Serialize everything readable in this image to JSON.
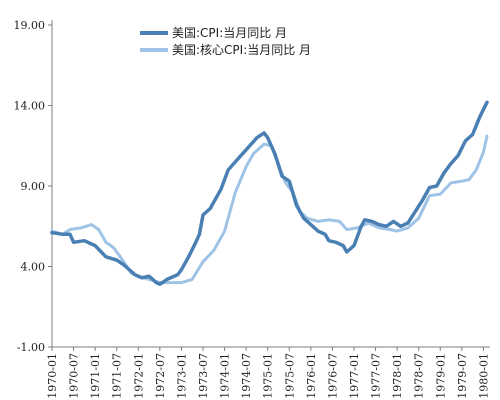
{
  "chart_data": {
    "type": "line",
    "title": "",
    "xlabel": "",
    "ylabel": "",
    "ylim": [
      -1.0,
      19.0
    ],
    "yticks": [
      "19.00",
      "14.00",
      "9.00",
      "4.00",
      "-1.00"
    ],
    "ytick_values": [
      19,
      14,
      9,
      4,
      -1
    ],
    "xticks": [
      "1970-01",
      "1970-07",
      "1971-01",
      "1971-07",
      "1972-01",
      "1972-07",
      "1973-01",
      "1973-07",
      "1974-01",
      "1974-07",
      "1975-01",
      "1975-07",
      "1976-01",
      "1976-07",
      "1977-01",
      "1977-07",
      "1978-01",
      "1978-07",
      "1979-01",
      "1979-07",
      "1980-01"
    ],
    "grid": false,
    "legend_position": "top",
    "x_range": [
      "1970-01",
      "1980-02"
    ],
    "series": [
      {
        "name": "美国:CPI:当月同比  月",
        "color": "#4a7fb3",
        "points": [
          [
            "1970-01",
            6.1
          ],
          [
            "1970-04",
            6.0
          ],
          [
            "1970-06",
            6.0
          ],
          [
            "1970-07",
            5.5
          ],
          [
            "1970-10",
            5.6
          ],
          [
            "1971-01",
            5.3
          ],
          [
            "1971-04",
            4.6
          ],
          [
            "1971-07",
            4.4
          ],
          [
            "1971-09",
            4.1
          ],
          [
            "1971-12",
            3.5
          ],
          [
            "1972-02",
            3.3
          ],
          [
            "1972-04",
            3.4
          ],
          [
            "1972-06",
            3.0
          ],
          [
            "1972-07",
            2.9
          ],
          [
            "1972-09",
            3.2
          ],
          [
            "1972-12",
            3.5
          ],
          [
            "1973-01",
            3.8
          ],
          [
            "1973-03",
            4.6
          ],
          [
            "1973-05",
            5.5
          ],
          [
            "1973-06",
            6.0
          ],
          [
            "1973-07",
            7.2
          ],
          [
            "1973-09",
            7.6
          ],
          [
            "1973-12",
            8.8
          ],
          [
            "1974-02",
            10.0
          ],
          [
            "1974-04",
            10.5
          ],
          [
            "1974-06",
            11.0
          ],
          [
            "1974-08",
            11.5
          ],
          [
            "1974-10",
            12.0
          ],
          [
            "1974-12",
            12.3
          ],
          [
            "1975-01",
            12.0
          ],
          [
            "1975-03",
            11.0
          ],
          [
            "1975-05",
            9.6
          ],
          [
            "1975-07",
            9.3
          ],
          [
            "1975-09",
            7.8
          ],
          [
            "1975-11",
            7.0
          ],
          [
            "1976-01",
            6.6
          ],
          [
            "1976-03",
            6.2
          ],
          [
            "1976-05",
            6.0
          ],
          [
            "1976-06",
            5.6
          ],
          [
            "1976-08",
            5.5
          ],
          [
            "1976-10",
            5.3
          ],
          [
            "1976-11",
            4.9
          ],
          [
            "1977-01",
            5.3
          ],
          [
            "1977-03",
            6.5
          ],
          [
            "1977-04",
            6.9
          ],
          [
            "1977-06",
            6.8
          ],
          [
            "1977-08",
            6.6
          ],
          [
            "1977-10",
            6.5
          ],
          [
            "1977-12",
            6.8
          ],
          [
            "1978-02",
            6.5
          ],
          [
            "1978-04",
            6.7
          ],
          [
            "1978-06",
            7.4
          ],
          [
            "1978-08",
            8.1
          ],
          [
            "1978-10",
            8.9
          ],
          [
            "1978-12",
            9.0
          ],
          [
            "1979-02",
            9.8
          ],
          [
            "1979-04",
            10.4
          ],
          [
            "1979-06",
            10.9
          ],
          [
            "1979-08",
            11.8
          ],
          [
            "1979-10",
            12.2
          ],
          [
            "1979-12",
            13.3
          ],
          [
            "1980-02",
            14.2
          ]
        ]
      },
      {
        "name": "美国:核心CPI:当月同比  月",
        "color": "#9ec3e6",
        "points": [
          [
            "1970-01",
            6.2
          ],
          [
            "1970-04",
            6.0
          ],
          [
            "1970-06",
            6.3
          ],
          [
            "1970-09",
            6.4
          ],
          [
            "1970-12",
            6.6
          ],
          [
            "1971-02",
            6.3
          ],
          [
            "1971-04",
            5.5
          ],
          [
            "1971-06",
            5.2
          ],
          [
            "1971-08",
            4.6
          ],
          [
            "1971-11",
            3.6
          ],
          [
            "1972-01",
            3.4
          ],
          [
            "1972-04",
            3.2
          ],
          [
            "1972-07",
            3.0
          ],
          [
            "1972-10",
            3.0
          ],
          [
            "1973-01",
            3.0
          ],
          [
            "1973-04",
            3.2
          ],
          [
            "1973-07",
            4.3
          ],
          [
            "1973-10",
            5.0
          ],
          [
            "1974-01",
            6.2
          ],
          [
            "1974-04",
            8.6
          ],
          [
            "1974-07",
            10.2
          ],
          [
            "1974-09",
            11.0
          ],
          [
            "1974-12",
            11.6
          ],
          [
            "1975-02",
            11.5
          ],
          [
            "1975-04",
            10.3
          ],
          [
            "1975-06",
            9.2
          ],
          [
            "1975-08",
            8.6
          ],
          [
            "1975-10",
            7.4
          ],
          [
            "1975-12",
            7.0
          ],
          [
            "1976-03",
            6.8
          ],
          [
            "1976-06",
            6.9
          ],
          [
            "1976-09",
            6.8
          ],
          [
            "1976-11",
            6.3
          ],
          [
            "1977-02",
            6.4
          ],
          [
            "1977-05",
            6.7
          ],
          [
            "1977-08",
            6.4
          ],
          [
            "1977-11",
            6.3
          ],
          [
            "1978-01",
            6.2
          ],
          [
            "1978-04",
            6.4
          ],
          [
            "1978-07",
            7.0
          ],
          [
            "1978-10",
            8.4
          ],
          [
            "1979-01",
            8.5
          ],
          [
            "1979-04",
            9.2
          ],
          [
            "1979-07",
            9.3
          ],
          [
            "1979-09",
            9.4
          ],
          [
            "1979-11",
            10.0
          ],
          [
            "1980-01",
            11.1
          ],
          [
            "1980-02",
            12.1
          ]
        ]
      }
    ]
  }
}
